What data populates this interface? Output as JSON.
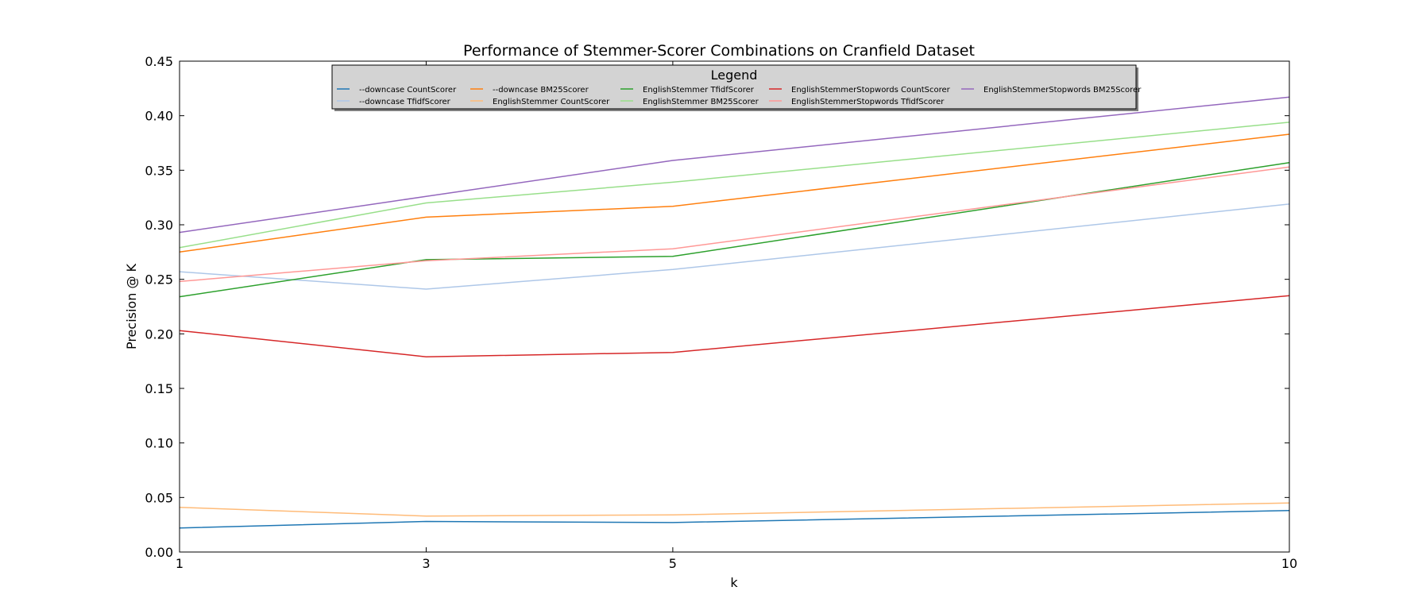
{
  "chart_data": {
    "type": "line",
    "title": "Performance of Stemmer-Scorer Combinations on Cranfield Dataset",
    "xlabel": "k",
    "ylabel": "Precision @ K",
    "x": [
      1,
      3,
      5,
      10
    ],
    "x_ticks": [
      "1",
      "3",
      "5",
      "10"
    ],
    "xlim": [
      1,
      10
    ],
    "ylim": [
      0,
      0.45
    ],
    "y_ticks": [
      "0.00",
      "0.05",
      "0.10",
      "0.15",
      "0.20",
      "0.25",
      "0.30",
      "0.35",
      "0.40",
      "0.45"
    ],
    "grid": false,
    "legend_title": "Legend",
    "legend_placement": "top-center",
    "series": [
      {
        "name": "--downcase CountScorer",
        "color": "#1f77b4",
        "values": [
          0.022,
          0.028,
          0.027,
          0.038
        ]
      },
      {
        "name": "--downcase TfidfScorer",
        "color": "#aec7e8",
        "values": [
          0.257,
          0.241,
          0.259,
          0.319
        ]
      },
      {
        "name": "--downcase BM25Scorer",
        "color": "#ff7f0e",
        "values": [
          0.275,
          0.307,
          0.317,
          0.383
        ]
      },
      {
        "name": "EnglishStemmer CountScorer",
        "color": "#ffbb78",
        "values": [
          0.041,
          0.033,
          0.034,
          0.045
        ]
      },
      {
        "name": "EnglishStemmer TfidfScorer",
        "color": "#2ca02c",
        "values": [
          0.234,
          0.268,
          0.271,
          0.357
        ]
      },
      {
        "name": "EnglishStemmer BM25Scorer",
        "color": "#98df8a",
        "values": [
          0.279,
          0.32,
          0.339,
          0.394
        ]
      },
      {
        "name": "EnglishStemmerStopwords CountScorer",
        "color": "#d62728",
        "values": [
          0.203,
          0.179,
          0.183,
          0.235
        ]
      },
      {
        "name": "EnglishStemmerStopwords TfidfScorer",
        "color": "#ff9896",
        "values": [
          0.248,
          0.267,
          0.278,
          0.353
        ]
      },
      {
        "name": "EnglishStemmerStopwords BM25Scorer",
        "color": "#9467bd",
        "values": [
          0.293,
          0.326,
          0.359,
          0.417
        ]
      }
    ]
  }
}
